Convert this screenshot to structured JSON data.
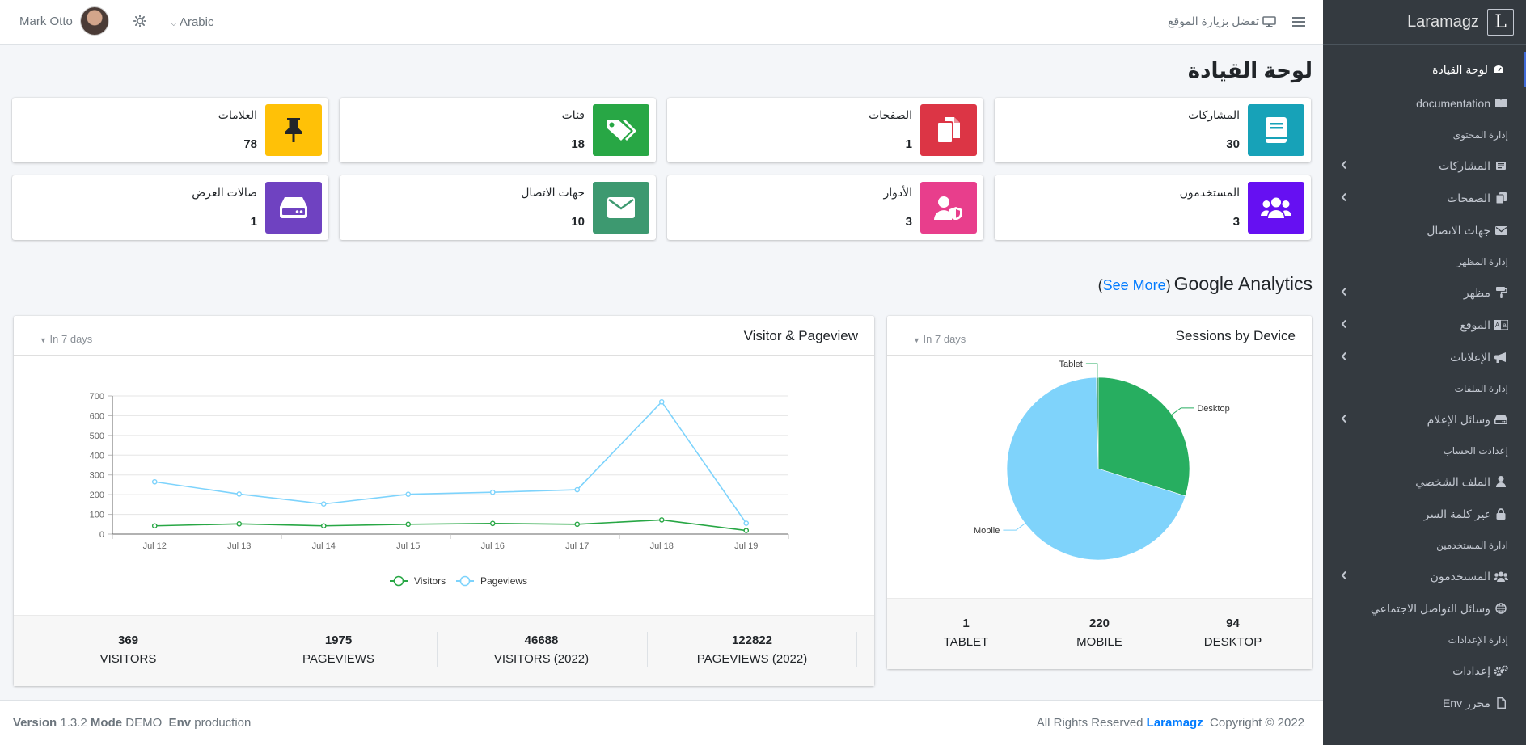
{
  "sidebar": {
    "brand_letter": "L",
    "brand_name": "Laramagz",
    "items": [
      {
        "type": "link",
        "label": "لوحة القيادة",
        "icon": "tachometer-icon",
        "active": true
      },
      {
        "type": "link",
        "label": "documentation",
        "icon": "book-icon"
      },
      {
        "type": "header",
        "label": "إدارة المحتوى"
      },
      {
        "type": "link",
        "label": "المشاركات",
        "icon": "newspaper-icon",
        "arrow": true
      },
      {
        "type": "link",
        "label": "الصفحات",
        "icon": "copy-icon",
        "arrow": true
      },
      {
        "type": "link",
        "label": "جهات الاتصال",
        "icon": "envelope-icon"
      },
      {
        "type": "header",
        "label": "إدارة المظهر"
      },
      {
        "type": "link",
        "label": "مظهر",
        "icon": "paint-roller-icon",
        "arrow": true
      },
      {
        "type": "link",
        "label": "الموقع",
        "icon": "language-icon",
        "arrow": true
      },
      {
        "type": "link",
        "label": "الإعلانات",
        "icon": "bullhorn-icon",
        "arrow": true
      },
      {
        "type": "header",
        "label": "إدارة الملفات"
      },
      {
        "type": "link",
        "label": "وسائل الإعلام",
        "icon": "hdd-icon",
        "arrow": true
      },
      {
        "type": "header",
        "label": "إعدادت الحساب"
      },
      {
        "type": "link",
        "label": "الملف الشخصي",
        "icon": "user-icon"
      },
      {
        "type": "link",
        "label": "غير كلمة السر",
        "icon": "lock-icon"
      },
      {
        "type": "header",
        "label": "ادارة المستخدمين"
      },
      {
        "type": "link",
        "label": "المستخدمون",
        "icon": "users-icon",
        "arrow": true
      },
      {
        "type": "link",
        "label": "وسائل التواصل الاجتماعي",
        "icon": "globe-icon"
      },
      {
        "type": "header",
        "label": "إدارة الإعدادات"
      },
      {
        "type": "link",
        "label": "إعدادات",
        "icon": "cogs-icon"
      },
      {
        "type": "link",
        "label": "محرر Env",
        "icon": "file-icon"
      }
    ]
  },
  "topbar": {
    "user_name": "Mark Otto",
    "language": "Arabic",
    "visit_site": "تفضل بزيارة الموقع"
  },
  "page": {
    "title": "لوحة القيادة"
  },
  "info_boxes": [
    {
      "label": "المشاركات",
      "value": "30",
      "color": "#17a2b8",
      "icon": "book-icon"
    },
    {
      "label": "الصفحات",
      "value": "1",
      "color": "#dc3545",
      "icon": "copy-icon"
    },
    {
      "label": "فئات",
      "value": "18",
      "color": "#28a745",
      "icon": "tags-icon"
    },
    {
      "label": "العلامات",
      "value": "78",
      "color": "#ffc107",
      "icon": "thumbtack-icon"
    },
    {
      "label": "المستخدمون",
      "value": "3",
      "color": "#6610f2",
      "icon": "users-icon"
    },
    {
      "label": "الأدوار",
      "value": "3",
      "color": "#e83e8c",
      "icon": "user-shield-icon"
    },
    {
      "label": "جهات الاتصال",
      "value": "10",
      "color": "#3d9970",
      "icon": "envelope-icon"
    },
    {
      "label": "صالات العرض",
      "value": "1",
      "color": "#6f42c1",
      "icon": "hdd-icon"
    }
  ],
  "analytics": {
    "title": "Google Analytics",
    "see_more_open": "(",
    "see_more": "See More",
    "see_more_close": ")"
  },
  "visitor_card": {
    "title": "Visitor & Pageview",
    "range": "In 7 days",
    "stats": [
      {
        "value": "369",
        "label": "VISITORS"
      },
      {
        "value": "1975",
        "label": "PAGEVIEWS"
      },
      {
        "value": "46688",
        "label": "VISITORS (2022)"
      },
      {
        "value": "122822",
        "label": "PAGEVIEWS (2022)"
      }
    ]
  },
  "sessions_card": {
    "title": "Sessions by Device",
    "range": "In 7 days",
    "stats": [
      {
        "value": "1",
        "label": "TABLET"
      },
      {
        "value": "220",
        "label": "MOBILE"
      },
      {
        "value": "94",
        "label": "DESKTOP"
      }
    ]
  },
  "chart_data": [
    {
      "type": "line",
      "title": "Visitor & Pageview",
      "categories": [
        "Jul 12",
        "Jul 13",
        "Jul 14",
        "Jul 15",
        "Jul 16",
        "Jul 17",
        "Jul 18",
        "Jul 19"
      ],
      "ylim": [
        0,
        700
      ],
      "yticks": [
        0,
        100,
        200,
        300,
        400,
        500,
        600,
        700
      ],
      "legend_position": "bottom",
      "series": [
        {
          "name": "Visitors",
          "color": "#28a745",
          "values": [
            42,
            52,
            42,
            50,
            54,
            50,
            72,
            18
          ]
        },
        {
          "name": "Pageviews",
          "color": "#7dd3fc",
          "values": [
            265,
            203,
            153,
            202,
            212,
            225,
            670,
            55
          ]
        }
      ]
    },
    {
      "type": "pie",
      "title": "Sessions by Device",
      "labels": [
        "Desktop",
        "Mobile",
        "Tablet"
      ],
      "values": [
        94,
        220,
        1
      ],
      "colors": [
        "#27ae60",
        "#7fd3fb",
        "#1f8a4c"
      ]
    }
  ],
  "footer": {
    "version_label": "Version",
    "version": "1.3.2",
    "mode_label": "Mode",
    "mode": "DEMO",
    "env_label": "Env",
    "env": "production",
    "rights": "All Rights Reserved",
    "brand": "Laramagz",
    "copyright": "Copyright © 2022"
  }
}
